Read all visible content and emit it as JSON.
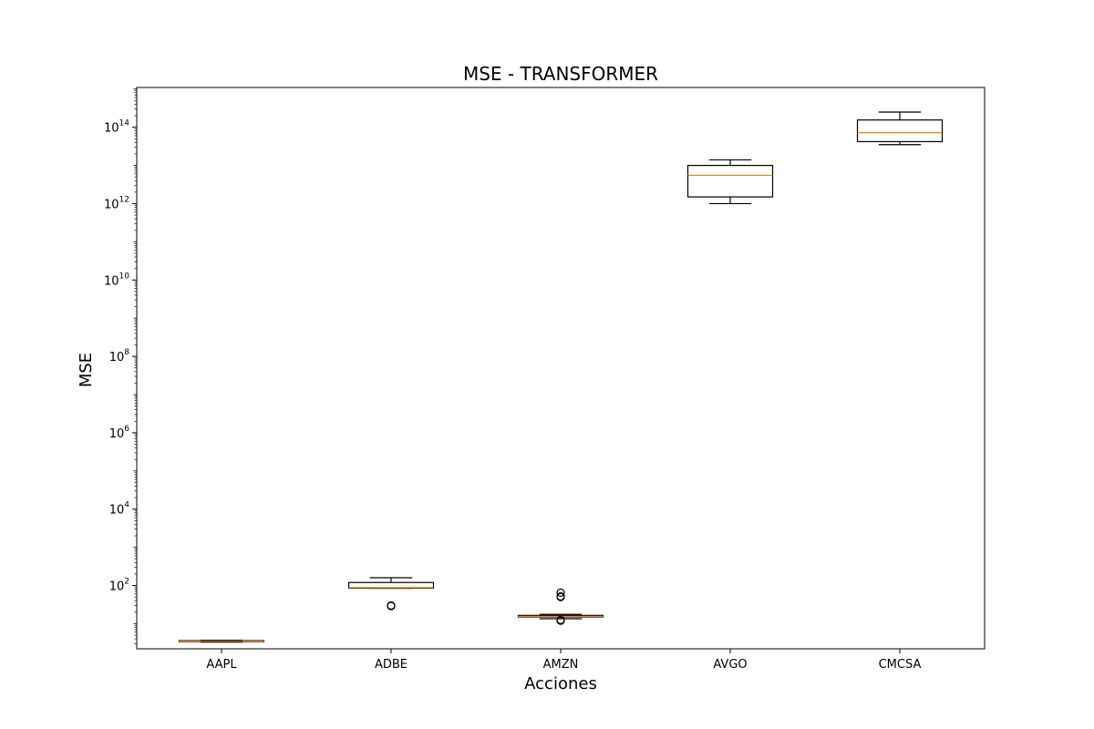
{
  "chart_data": {
    "type": "box",
    "title": "MSE - TRANSFORMER",
    "xlabel": "Acciones",
    "ylabel": "MSE",
    "yscale": "log",
    "ylim": [
      2.2,
      1100000000000000.0
    ],
    "grid": false,
    "colors": {
      "box": "#000000",
      "median": "#ff7f0e"
    },
    "yticks": [
      {
        "value": 100,
        "base": "10",
        "exp": "2"
      },
      {
        "value": 10000,
        "base": "10",
        "exp": "4"
      },
      {
        "value": 1000000,
        "base": "10",
        "exp": "6"
      },
      {
        "value": 100000000,
        "base": "10",
        "exp": "8"
      },
      {
        "value": 10000000000,
        "base": "10",
        "exp": "10"
      },
      {
        "value": 1000000000000,
        "base": "10",
        "exp": "12"
      },
      {
        "value": 100000000000000,
        "base": "10",
        "exp": "14"
      }
    ],
    "categories": [
      "AAPL",
      "ADBE",
      "AMZN",
      "AVGO",
      "CMCSA"
    ],
    "boxes": [
      {
        "whislo": 3.3,
        "q1": 3.4,
        "med": 3.5,
        "q3": 3.6,
        "whishi": 3.7,
        "fliers": []
      },
      {
        "whislo": 85,
        "q1": 85,
        "med": 88,
        "q3": 120,
        "whishi": 160,
        "fliers": [
          29,
          30
        ]
      },
      {
        "whislo": 13.5,
        "q1": 15,
        "med": 15.5,
        "q3": 16.5,
        "whishi": 17.5,
        "fliers": [
          12,
          12.5,
          50,
          52,
          65
        ]
      },
      {
        "whislo": 1000000000000.0,
        "q1": 1500000000000.0,
        "med": 5500000000000.0,
        "q3": 10000000000000.0,
        "whishi": 14000000000000.0,
        "fliers": []
      },
      {
        "whislo": 35000000000000.0,
        "q1": 42000000000000.0,
        "med": 72000000000000.0,
        "q3": 155000000000000.0,
        "whishi": 250000000000000.0,
        "fliers": []
      }
    ]
  }
}
